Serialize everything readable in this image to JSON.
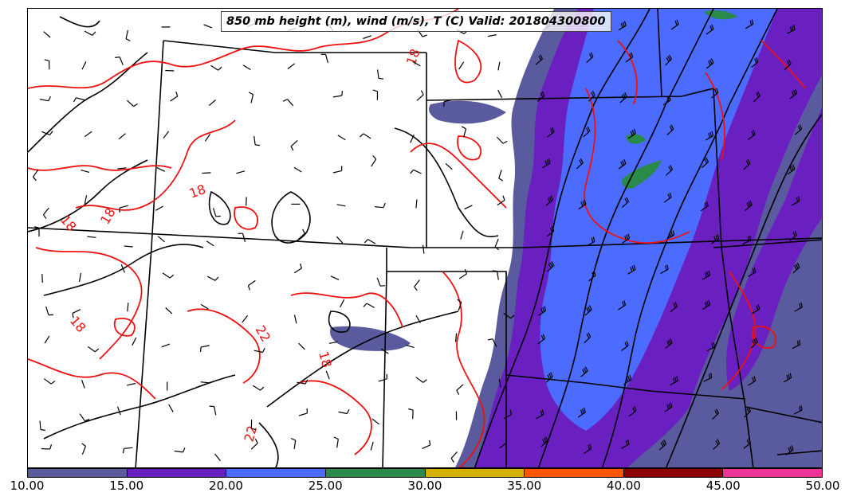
{
  "title": "850 mb height (m), wind (m/s), T (C) Valid: 201804300800",
  "colors": {
    "band_10_15": "#5a5a9e",
    "band_15_20": "#6a20c0",
    "band_20_25": "#4c6cff",
    "band_25_30": "#2a8a4a",
    "band_30_35": "#d4b000",
    "band_35_40": "#ff5500",
    "band_40_45": "#8b0000",
    "band_45_50": "#ee3399",
    "temperature_contour": "#ee1111",
    "height_contour": "#000000",
    "state_border": "#000000"
  },
  "temperature_contour_labels": [
    "18",
    "18",
    "18",
    "18",
    "18",
    "22",
    "18",
    "22"
  ],
  "colorbar": {
    "segments": [
      {
        "color": "#5a5a9e"
      },
      {
        "color": "#6a20c0"
      },
      {
        "color": "#4c6cff"
      },
      {
        "color": "#2a8a4a"
      },
      {
        "color": "#d4b000"
      },
      {
        "color": "#ff5500"
      },
      {
        "color": "#8b0000"
      },
      {
        "color": "#ee3399"
      }
    ],
    "labels": [
      "10.00",
      "15.00",
      "20.00",
      "25.00",
      "30.00",
      "35.00",
      "40.00",
      "45.00",
      "50.00"
    ]
  }
}
